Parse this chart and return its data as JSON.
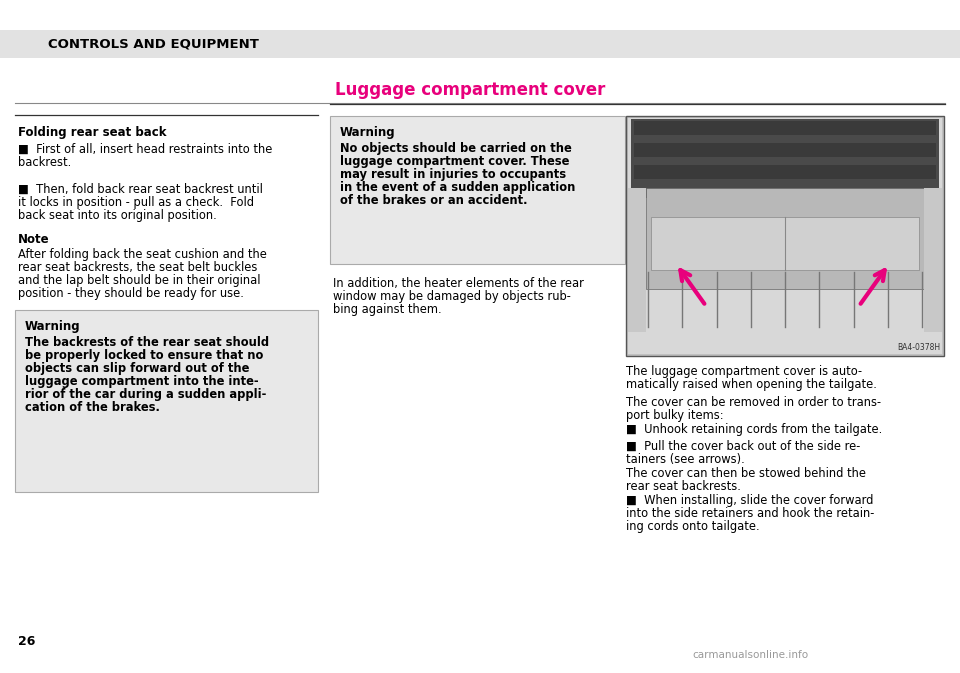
{
  "page_bg": "#ffffff",
  "header_bg": "#e2e2e2",
  "header_text": "CONTROLS AND EQUIPMENT",
  "page_number": "26",
  "section_title": "Luggage compartment cover",
  "section_title_color": "#e8007c",
  "folding_title": "Folding rear seat back",
  "bullet1_line1": "■  First of all, insert head restraints into the",
  "bullet1_line2": "backrest.",
  "bullet2_line1": "■  Then, fold back rear seat backrest until",
  "bullet2_line2": "it locks in position - pull as a check.  Fold",
  "bullet2_line3": "back seat into its original position.",
  "note_title": "Note",
  "note_line1": "After folding back the seat cushion and the",
  "note_line2": "rear seat backrests, the seat belt buckles",
  "note_line3": "and the lap belt should be in their original",
  "note_line4": "position - they should be ready for use.",
  "w1_title": "Warning",
  "w1_line1": "The backrests of the rear seat should",
  "w1_line2": "be properly locked to ensure that no",
  "w1_line3": "objects can slip forward out of the",
  "w1_line4": "luggage compartment into the inte-",
  "w1_line5": "rior of the car during a sudden appli-",
  "w1_line6": "cation of the brakes.",
  "w2_title": "Warning",
  "w2_line1": "No objects should be carried on the",
  "w2_line2": "luggage compartment cover. These",
  "w2_line3": "may result in injuries to occupants",
  "w2_line4": "in the event of a sudden application",
  "w2_line5": "of the brakes or an accident.",
  "mid_line1": "In addition, the heater elements of the rear",
  "mid_line2": "window may be damaged by objects rub-",
  "mid_line3": "bing against them.",
  "rt1_line1": "The luggage compartment cover is auto-",
  "rt1_line2": "matically raised when opening the tailgate.",
  "rt2_line1": "The cover can be removed in order to trans-",
  "rt2_line2": "port bulky items:",
  "rb1": "■  Unhook retaining cords from the tailgate.",
  "rb2_line1": "■  Pull the cover back out of the side re-",
  "rb2_line2": "tainers (see arrows).",
  "rt3_line1": "The cover can then be stowed behind the",
  "rt3_line2": "rear seat backrests.",
  "rb3_line1": "■  When installing, slide the cover forward",
  "rb3_line2": "into the side retainers and hook the retain-",
  "rb3_line3": "ing cords onto tailgate.",
  "img_caption": "BA4-0378H",
  "watermark": "carmanualsonline.info",
  "warn_bg": "#e8e8e8",
  "warn_border": "#aaaaaa"
}
